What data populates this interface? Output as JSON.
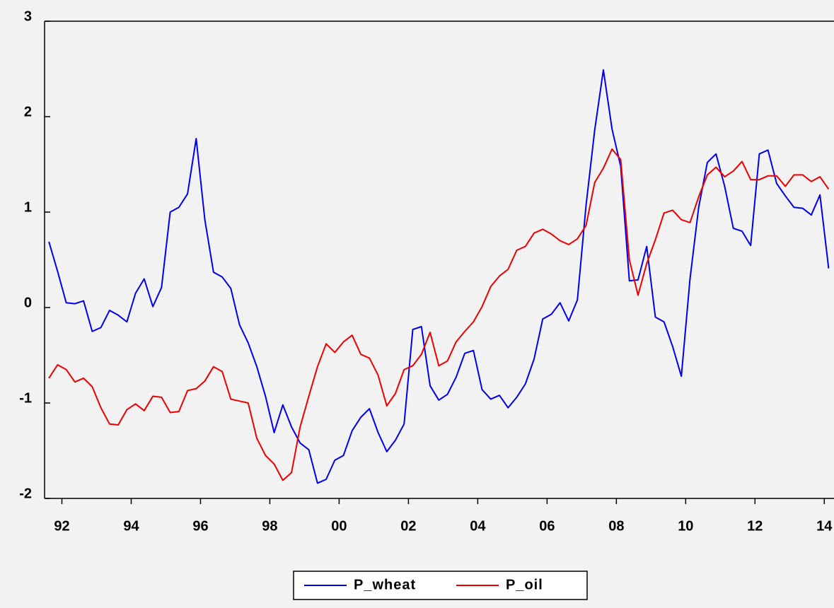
{
  "chart_data": {
    "type": "line",
    "x": [
      1992.125,
      1992.375,
      1992.625,
      1992.875,
      1993.125,
      1993.375,
      1993.625,
      1993.875,
      1994.125,
      1994.375,
      1994.625,
      1994.875,
      1995.125,
      1995.375,
      1995.625,
      1995.875,
      1996.125,
      1996.375,
      1996.625,
      1996.875,
      1997.125,
      1997.375,
      1997.625,
      1997.875,
      1998.125,
      1998.375,
      1998.625,
      1998.875,
      1999.125,
      1999.375,
      1999.625,
      1999.875,
      2000.125,
      2000.375,
      2000.625,
      2000.875,
      2001.125,
      2001.375,
      2001.625,
      2001.875,
      2002.125,
      2002.375,
      2002.625,
      2002.875,
      2003.125,
      2003.375,
      2003.625,
      2003.875,
      2004.125,
      2004.375,
      2004.625,
      2004.875,
      2005.125,
      2005.375,
      2005.625,
      2005.875,
      2006.125,
      2006.375,
      2006.625,
      2006.875,
      2007.125,
      2007.375,
      2007.625,
      2007.875,
      2008.125,
      2008.375,
      2008.625,
      2008.875,
      2009.125,
      2009.375,
      2009.625,
      2009.875,
      2010.125,
      2010.375,
      2010.625,
      2010.875,
      2011.125,
      2011.375,
      2011.625,
      2011.875,
      2012.125,
      2012.375,
      2012.625,
      2012.875,
      2013.125,
      2013.375,
      2013.625,
      2013.875,
      2014.125,
      2014.375,
      2014.625
    ],
    "series": [
      {
        "name": "P_wheat",
        "color": "#0000ee",
        "values": [
          0.69,
          0.38,
          0.05,
          0.04,
          0.07,
          -0.25,
          -0.21,
          -0.03,
          -0.08,
          -0.15,
          0.15,
          0.3,
          0.01,
          0.21,
          1.0,
          1.05,
          1.19,
          1.77,
          0.92,
          0.37,
          0.32,
          0.2,
          -0.18,
          -0.37,
          -0.62,
          -0.93,
          -1.31,
          -1.02,
          -1.25,
          -1.42,
          -1.49,
          -1.84,
          -1.8,
          -1.6,
          -1.55,
          -1.29,
          -1.15,
          -1.06,
          -1.31,
          -1.51,
          -1.39,
          -1.22,
          -0.23,
          -0.2,
          -0.82,
          -0.97,
          -0.91,
          -0.73,
          -0.48,
          -0.45,
          -0.86,
          -0.96,
          -0.92,
          -1.05,
          -0.94,
          -0.8,
          -0.54,
          -0.12,
          -0.07,
          0.05,
          -0.14,
          0.08,
          1.07,
          1.86,
          2.49,
          1.87,
          1.48,
          0.28,
          0.29,
          0.64,
          -0.1,
          -0.15,
          -0.41,
          -0.72,
          0.3,
          1.05,
          1.52,
          1.61,
          1.27,
          0.83,
          0.8,
          0.65,
          1.61,
          1.65,
          1.3,
          1.17,
          1.05,
          1.04,
          0.97,
          1.18,
          0.41
        ]
      },
      {
        "name": "P_oil",
        "color": "#ee0000",
        "values": [
          -0.74,
          -0.6,
          -0.65,
          -0.78,
          -0.74,
          -0.83,
          -1.05,
          -1.22,
          -1.23,
          -1.07,
          -1.01,
          -1.08,
          -0.93,
          -0.94,
          -1.1,
          -1.09,
          -0.87,
          -0.85,
          -0.77,
          -0.62,
          -0.67,
          -0.96,
          -0.98,
          -1.0,
          -1.37,
          -1.55,
          -1.64,
          -1.81,
          -1.73,
          -1.25,
          -0.93,
          -0.62,
          -0.38,
          -0.47,
          -0.36,
          -0.29,
          -0.49,
          -0.53,
          -0.71,
          -1.03,
          -0.9,
          -0.65,
          -0.61,
          -0.49,
          -0.26,
          -0.61,
          -0.56,
          -0.36,
          -0.25,
          -0.15,
          0.01,
          0.22,
          0.33,
          0.4,
          0.6,
          0.64,
          0.78,
          0.82,
          0.77,
          0.7,
          0.66,
          0.72,
          0.86,
          1.31,
          1.46,
          1.66,
          1.55,
          0.5,
          0.13,
          0.46,
          0.71,
          0.99,
          1.02,
          0.92,
          0.89,
          1.16,
          1.39,
          1.47,
          1.37,
          1.43,
          1.53,
          1.34,
          1.34,
          1.38,
          1.38,
          1.27,
          1.39,
          1.39,
          1.32,
          1.37,
          1.24
        ]
      }
    ],
    "xlim": [
      1992,
      2014.78
    ],
    "xticks": [
      {
        "value": 1992.5,
        "label": "92"
      },
      {
        "value": 1994.5,
        "label": "94"
      },
      {
        "value": 1996.5,
        "label": "96"
      },
      {
        "value": 1998.5,
        "label": "98"
      },
      {
        "value": 2000.5,
        "label": "00"
      },
      {
        "value": 2002.5,
        "label": "02"
      },
      {
        "value": 2004.5,
        "label": "04"
      },
      {
        "value": 2006.5,
        "label": "06"
      },
      {
        "value": 2008.5,
        "label": "08"
      },
      {
        "value": 2010.5,
        "label": "10"
      },
      {
        "value": 2012.5,
        "label": "12"
      },
      {
        "value": 2014.5,
        "label": "14"
      }
    ],
    "ylim": [
      -2,
      3
    ],
    "yticks": [
      -2,
      -1,
      0,
      1,
      2,
      3
    ]
  }
}
